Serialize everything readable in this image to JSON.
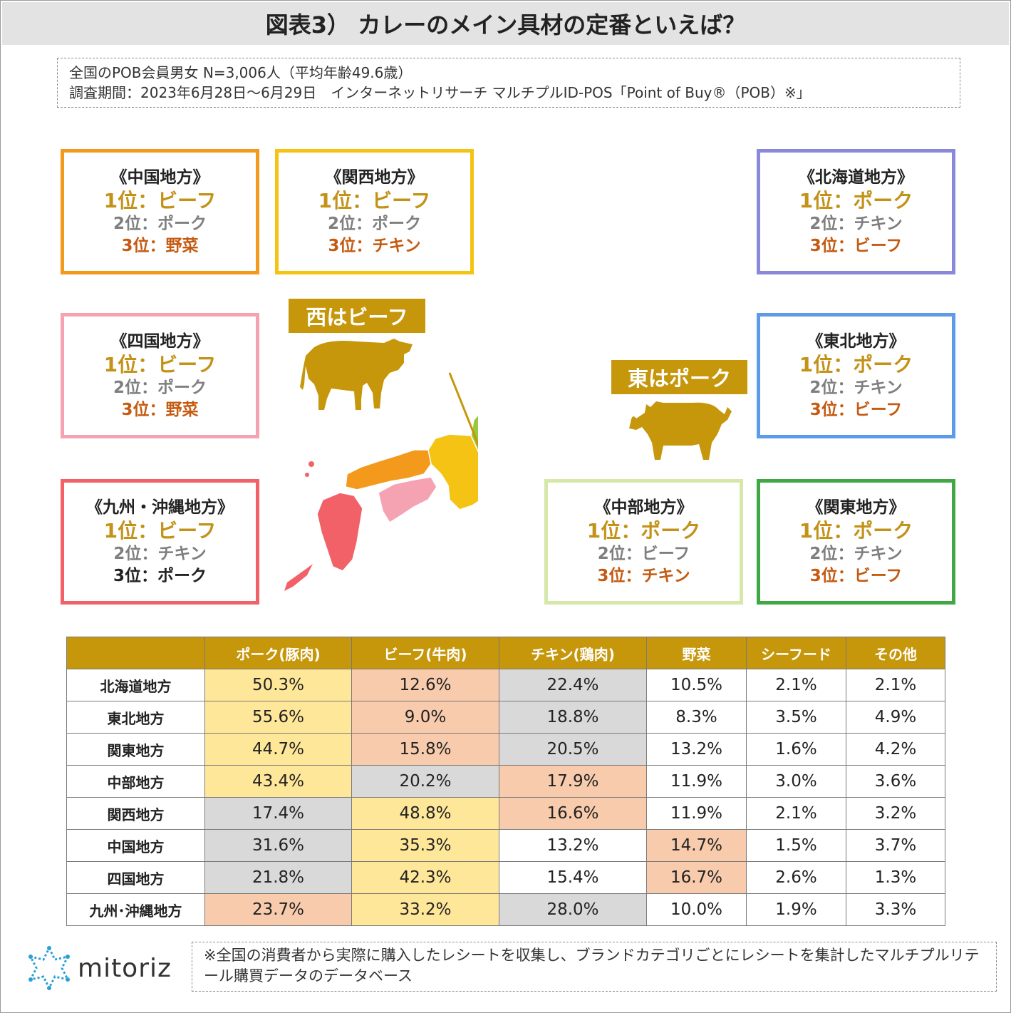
{
  "title": "図表3） カレーのメイン具材の定番といえば？",
  "meta": {
    "line1": "全国のPOB会員男女 N=3,006人（平均年齢49.6歳）",
    "line2": "調査期間：2023年6月28日～6月29日　インターネットリサーチ マルチプルID-POS「Point of Buy®（POB）※」"
  },
  "colors": {
    "accent_gold": "#c6960b",
    "rank1_text": "#c39218",
    "rank3_text": "#c55a11",
    "highlight_yellow": "#ffe79a",
    "highlight_orange": "#f8cbad",
    "highlight_gray": "#d9d9d9"
  },
  "regions": {
    "chugoku": {
      "name": "《中国地方》",
      "r1": "1位：ビーフ",
      "r2": "2位：ポーク",
      "r3": "3位：野菜",
      "color": "#f39a1c"
    },
    "kansai": {
      "name": "《関西地方》",
      "r1": "1位：ビーフ",
      "r2": "2位：ポーク",
      "r3": "3位：チキン",
      "color": "#f4c313"
    },
    "hokkaido": {
      "name": "《北海道地方》",
      "r1": "1位：ポーク",
      "r2": "2位：チキン",
      "r3": "3位：ビーフ",
      "color": "#8a88d8"
    },
    "shikoku": {
      "name": "《四国地方》",
      "r1": "1位：ビーフ",
      "r2": "2位：ポーク",
      "r3": "3位：野菜",
      "color": "#f5a3b2"
    },
    "tohoku": {
      "name": "《東北地方》",
      "r1": "1位：ポーク",
      "r2": "2位：チキン",
      "r3": "3位：ビーフ",
      "color": "#5b9be8"
    },
    "kyushu": {
      "name": "《九州・沖縄地方》",
      "r1": "1位：ビーフ",
      "r2": "2位：チキン",
      "r3": "3位：ポーク",
      "color": "#f26167"
    },
    "chubu": {
      "name": "《中部地方》",
      "r1": "1位：ポーク",
      "r2": "2位：ビーフ",
      "r3": "3位：チキン",
      "color": "#d5e8a8"
    },
    "kanto": {
      "name": "《関東地方》",
      "r1": "1位：ポーク",
      "r2": "2位：チキン",
      "r3": "3位：ビーフ",
      "color": "#3fa843"
    }
  },
  "labels": {
    "west": "西はビーフ",
    "east": "東はポーク"
  },
  "map_region_colors": {
    "hokkaido": "#8683d9",
    "tohoku": "#5b9be8",
    "kanto": "#3da34a",
    "chubu": "#98c93c",
    "kansai": "#f4c313",
    "chugoku": "#f39a1c",
    "shikoku": "#f5a3b2",
    "kyushu": "#f26167"
  },
  "chart_data": {
    "type": "table",
    "columns": [
      "",
      "ポーク(豚肉)",
      "ビーフ(牛肉)",
      "チキン(鶏肉)",
      "野菜",
      "シーフード",
      "その他"
    ],
    "rows": [
      {
        "region": "北海道地方",
        "values": [
          "50.3%",
          "12.6%",
          "22.4%",
          "10.5%",
          "2.1%",
          "2.1%"
        ],
        "hl": [
          "y",
          "o",
          "g",
          "",
          "",
          ""
        ]
      },
      {
        "region": "東北地方",
        "values": [
          "55.6%",
          "9.0%",
          "18.8%",
          "8.3%",
          "3.5%",
          "4.9%"
        ],
        "hl": [
          "y",
          "o",
          "g",
          "",
          "",
          ""
        ]
      },
      {
        "region": "関東地方",
        "values": [
          "44.7%",
          "15.8%",
          "20.5%",
          "13.2%",
          "1.6%",
          "4.2%"
        ],
        "hl": [
          "y",
          "o",
          "g",
          "",
          "",
          ""
        ]
      },
      {
        "region": "中部地方",
        "values": [
          "43.4%",
          "20.2%",
          "17.9%",
          "11.9%",
          "3.0%",
          "3.6%"
        ],
        "hl": [
          "y",
          "g",
          "o",
          "",
          "",
          ""
        ]
      },
      {
        "region": "関西地方",
        "values": [
          "17.4%",
          "48.8%",
          "16.6%",
          "11.9%",
          "2.1%",
          "3.2%"
        ],
        "hl": [
          "g",
          "y",
          "o",
          "",
          "",
          ""
        ]
      },
      {
        "region": "中国地方",
        "values": [
          "31.6%",
          "35.3%",
          "13.2%",
          "14.7%",
          "1.5%",
          "3.7%"
        ],
        "hl": [
          "g",
          "y",
          "",
          "o",
          "",
          ""
        ]
      },
      {
        "region": "四国地方",
        "values": [
          "21.8%",
          "42.3%",
          "15.4%",
          "16.7%",
          "2.6%",
          "1.3%"
        ],
        "hl": [
          "g",
          "y",
          "",
          "o",
          "",
          ""
        ]
      },
      {
        "region": "九州･沖縄地方",
        "values": [
          "23.7%",
          "33.2%",
          "28.0%",
          "10.0%",
          "1.9%",
          "3.3%"
        ],
        "hl": [
          "o",
          "y",
          "g",
          "",
          "",
          ""
        ]
      }
    ]
  },
  "logo": {
    "text": "mitoriz"
  },
  "footnote": "※全国の消費者から実際に購入したレシートを収集し、ブランドカテゴリごとにレシートを集計したマルチプルリテール購買データのデータベース"
}
